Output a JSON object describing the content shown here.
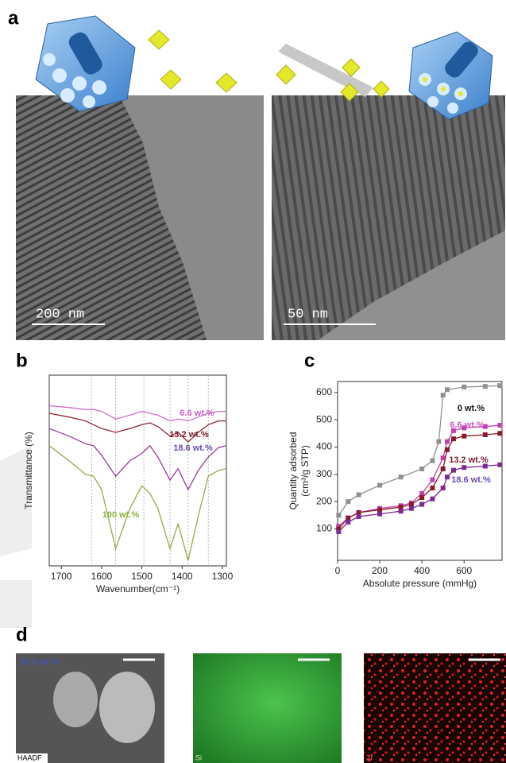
{
  "panel_labels": [
    "a",
    "b",
    "c",
    "d"
  ],
  "panel_a": {
    "scale_bars": [
      "200 nm",
      "50 nm"
    ]
  },
  "chart_data": [
    {
      "type": "line",
      "xlabel": "Wavenumber(cm⁻¹)",
      "ylabel": "Transmittance (%)",
      "x": [
        1730,
        1680,
        1640,
        1620,
        1600,
        1565,
        1530,
        1500,
        1480,
        1460,
        1430,
        1410,
        1385,
        1360,
        1335,
        1310,
        1290
      ],
      "xlim": [
        1730,
        1290
      ],
      "xticks": [
        1700,
        1600,
        1500,
        1400,
        1300
      ],
      "ylim": [
        0,
        100
      ],
      "vlines": [
        1625,
        1565,
        1495,
        1430,
        1385,
        1335
      ],
      "series": [
        {
          "name": "6.6 wt.%",
          "color": "#d46cc4",
          "label_color": "#d05cc0",
          "values": [
            84,
            83,
            82,
            82,
            81,
            77,
            79,
            81,
            80,
            79,
            76,
            77,
            76,
            78,
            80,
            81,
            81
          ]
        },
        {
          "name": "13.2 wt.%",
          "color": "#8b2433",
          "label_color": "#7a1a28",
          "values": [
            80,
            78,
            76,
            74,
            72,
            70,
            72,
            74,
            75,
            73,
            68,
            70,
            65,
            70,
            74,
            76,
            76
          ]
        },
        {
          "name": "18.6 wt.%",
          "color": "#9a3aa0",
          "label_color": "#6a4ab8",
          "values": [
            72,
            68,
            64,
            63,
            58,
            47,
            55,
            59,
            63,
            57,
            45,
            51,
            40,
            50,
            57,
            62,
            63
          ]
        },
        {
          "name": "100 wt.%",
          "color": "#9aa84a",
          "label_color": "#8ab040",
          "values": [
            63,
            55,
            48,
            47,
            40,
            9,
            30,
            42,
            38,
            30,
            9,
            22,
            3,
            26,
            47,
            50,
            51
          ]
        }
      ]
    },
    {
      "type": "line",
      "markers": true,
      "xlabel": "Absolute pressure (mmHg)",
      "ylabel": [
        "Quantity adsorbed",
        "(cm³/g STP)"
      ],
      "xlim": [
        0,
        780
      ],
      "xticks": [
        0,
        200,
        400,
        600
      ],
      "ylim": [
        -15,
        640
      ],
      "yticks": [
        100,
        200,
        300,
        400,
        500,
        600
      ],
      "series": [
        {
          "name": "0 wt.%",
          "color": "#909090",
          "label_color": "#111111",
          "x": [
            5,
            50,
            100,
            200,
            300,
            400,
            450,
            480,
            500,
            520,
            600,
            700,
            770
          ],
          "values": [
            150,
            200,
            225,
            260,
            290,
            320,
            350,
            420,
            590,
            610,
            620,
            622,
            625
          ]
        },
        {
          "name": "6.6 wt.%",
          "color": "#c040b0",
          "label_color": "#d050c0",
          "x": [
            5,
            50,
            100,
            200,
            300,
            350,
            400,
            450,
            500,
            520,
            550,
            600,
            700,
            770
          ],
          "values": [
            110,
            140,
            160,
            175,
            185,
            195,
            230,
            280,
            360,
            420,
            460,
            470,
            475,
            480
          ]
        },
        {
          "name": "13.2 wt.%",
          "color": "#8b1a2a",
          "label_color": "#7a1a28",
          "x": [
            5,
            50,
            100,
            200,
            300,
            350,
            400,
            450,
            500,
            520,
            550,
            600,
            700,
            770
          ],
          "values": [
            100,
            140,
            160,
            170,
            180,
            190,
            215,
            250,
            320,
            390,
            430,
            440,
            445,
            450
          ]
        },
        {
          "name": "18.6 wt.%",
          "color": "#7a2a90",
          "label_color": "#6a4ab8",
          "x": [
            5,
            50,
            100,
            200,
            300,
            350,
            400,
            450,
            500,
            520,
            550,
            600,
            700,
            770
          ],
          "values": [
            90,
            125,
            145,
            155,
            165,
            175,
            190,
            210,
            250,
            290,
            315,
            325,
            330,
            335
          ]
        }
      ]
    }
  ],
  "panel_d": {
    "tag": "18.6 wt.%",
    "map_labels": [
      "HAADF",
      "Si",
      "Zr"
    ]
  }
}
